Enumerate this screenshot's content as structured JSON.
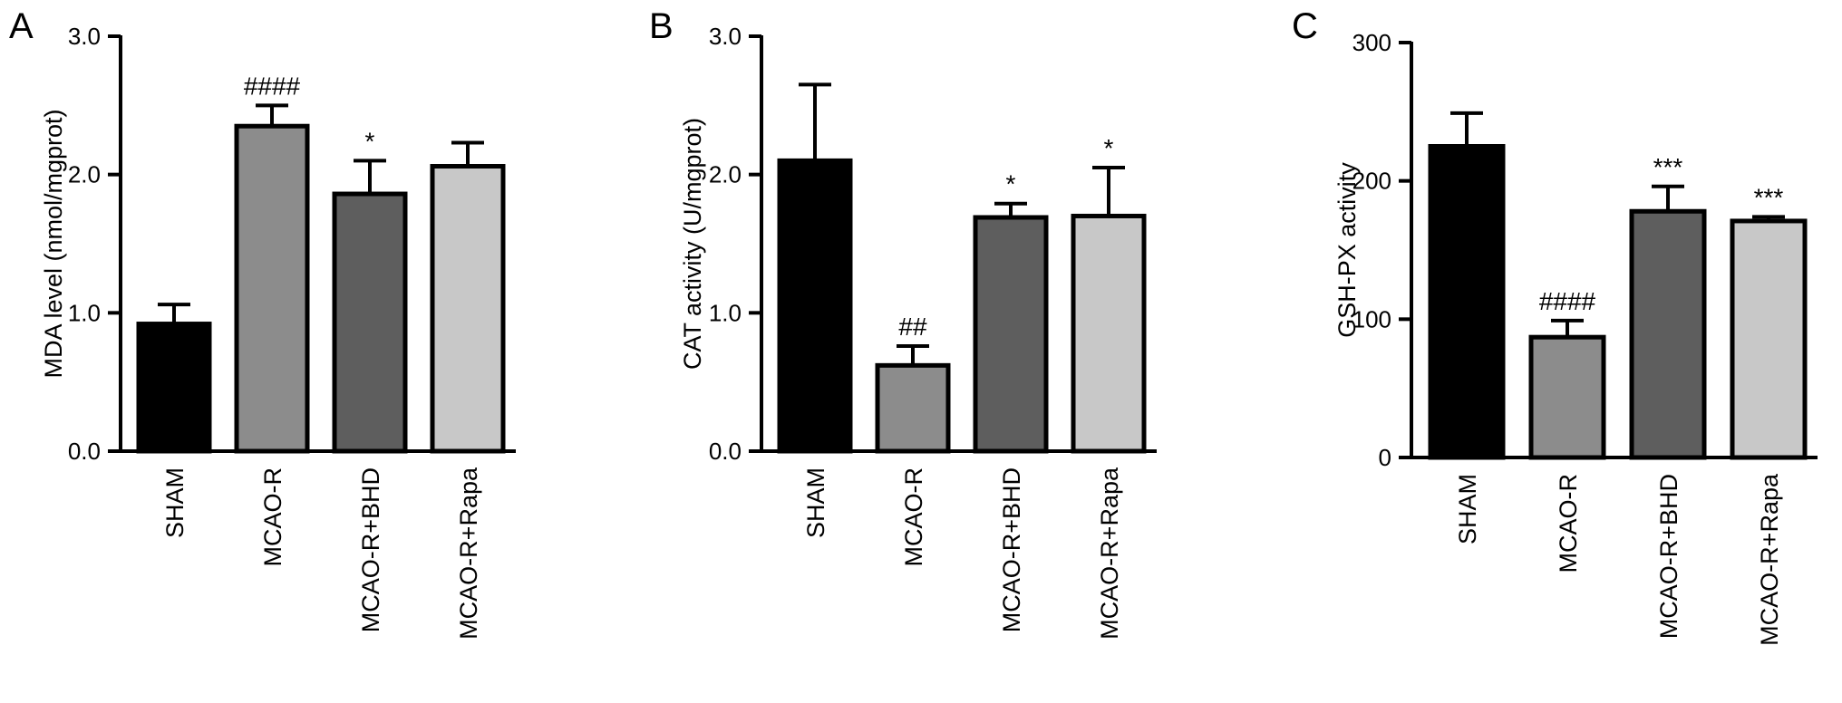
{
  "chart_data": [
    {
      "panel": "A",
      "type": "bar",
      "title": "",
      "xlabel": "",
      "ylabel": "MDA level (nmol/mgprot)",
      "ylim": [
        0,
        3.0
      ],
      "yticks": [
        "0.0",
        "1.0",
        "2.0",
        "3.0"
      ],
      "categories": [
        "SHAM",
        "MCAO-R",
        "MCAO-R+BHD",
        "MCAO-R+Rapa"
      ],
      "values": [
        0.92,
        2.35,
        1.86,
        2.06
      ],
      "errors": [
        0.14,
        0.15,
        0.24,
        0.17
      ],
      "annotations": [
        "",
        "####",
        "*",
        ""
      ],
      "colors": [
        "#000000",
        "#8c8c8c",
        "#5e5e5e",
        "#c8c8c8"
      ],
      "grid": false
    },
    {
      "panel": "B",
      "type": "bar",
      "title": "",
      "xlabel": "",
      "ylabel": "CAT activity (U/mgprot)",
      "ylim": [
        0,
        3.0
      ],
      "yticks": [
        "0.0",
        "1.0",
        "2.0",
        "3.0"
      ],
      "categories": [
        "SHAM",
        "MCAO-R",
        "MCAO-R+BHD",
        "MCAO-R+Rapa"
      ],
      "values": [
        2.1,
        0.62,
        1.69,
        1.7
      ],
      "errors": [
        0.55,
        0.14,
        0.1,
        0.35
      ],
      "annotations": [
        "",
        "##",
        "*",
        "*"
      ],
      "colors": [
        "#000000",
        "#8c8c8c",
        "#5e5e5e",
        "#c8c8c8"
      ],
      "grid": false
    },
    {
      "panel": "C",
      "type": "bar",
      "title": "",
      "xlabel": "",
      "ylabel": "GSH-PX activity",
      "ylim": [
        0,
        300
      ],
      "yticks": [
        "0",
        "100",
        "200",
        "300"
      ],
      "categories": [
        "SHAM",
        "MCAO-R",
        "MCAO-R+BHD",
        "MCAO-R+Rapa"
      ],
      "values": [
        225,
        87,
        178,
        171
      ],
      "errors": [
        24,
        12,
        18,
        3
      ],
      "annotations": [
        "",
        "####",
        "***",
        "***"
      ],
      "colors": [
        "#000000",
        "#8c8c8c",
        "#5e5e5e",
        "#c8c8c8"
      ],
      "grid": false
    }
  ]
}
